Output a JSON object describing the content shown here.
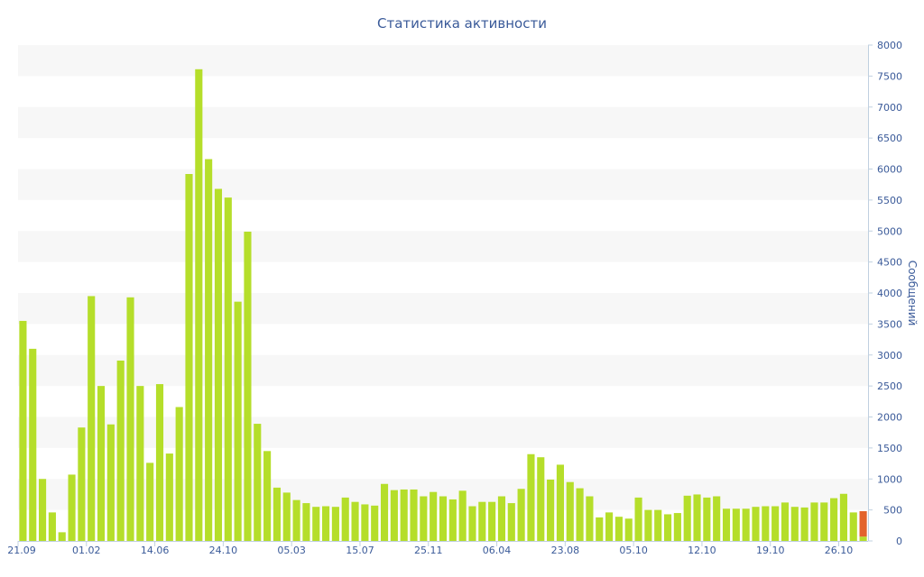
{
  "chart_data": {
    "type": "bar",
    "title": "Статистика активности",
    "ylabel": "Сообщений",
    "y_axis_side": "right",
    "ylim": [
      0,
      8000
    ],
    "yticks": [
      0,
      500,
      1000,
      1500,
      2000,
      2500,
      3000,
      3500,
      4000,
      4500,
      5000,
      5500,
      6000,
      6500,
      7000,
      7500,
      8000
    ],
    "grid": "alternating horizontal bands",
    "x_tick_labels": [
      {
        "label": "21.09",
        "bar": 0
      },
      {
        "label": "01.02",
        "bar": 7
      },
      {
        "label": "14.06",
        "bar": 14
      },
      {
        "label": "24.10",
        "bar": 21
      },
      {
        "label": "05.03",
        "bar": 28
      },
      {
        "label": "15.07",
        "bar": 35
      },
      {
        "label": "25.11",
        "bar": 42
      },
      {
        "label": "06.04",
        "bar": 49
      },
      {
        "label": "23.08",
        "bar": 56
      },
      {
        "label": "05.10",
        "bar": 63
      },
      {
        "label": "12.10",
        "bar": 70
      },
      {
        "label": "19.10",
        "bar": 77
      },
      {
        "label": "26.10",
        "bar": 84
      }
    ],
    "series": [
      {
        "color": "#b5de2a",
        "values": [
          3550,
          3100,
          1000,
          460,
          140,
          1070,
          1830,
          3950,
          2500,
          1880,
          2910,
          3930,
          2500,
          1260,
          2530,
          1410,
          2160,
          5920,
          7610,
          6160,
          5680,
          5540,
          3860,
          4990,
          1890,
          1450,
          860,
          780,
          660,
          610,
          550,
          560,
          550,
          700,
          630,
          590,
          570,
          920,
          820,
          830,
          830,
          720,
          790,
          720,
          670,
          810,
          560,
          630,
          630,
          720,
          610,
          840,
          1400,
          1350,
          990,
          1230,
          950,
          850,
          720,
          380,
          460,
          390,
          360,
          700,
          500,
          500,
          430,
          450,
          730,
          750,
          700,
          720,
          520,
          520,
          520,
          550,
          560,
          560,
          620,
          550,
          540,
          620,
          620,
          690,
          760,
          460,
          70
        ]
      },
      {
        "color": "#e3632b",
        "values": [
          0,
          0,
          0,
          0,
          0,
          0,
          0,
          0,
          0,
          0,
          0,
          0,
          0,
          0,
          0,
          0,
          0,
          0,
          0,
          0,
          0,
          0,
          0,
          0,
          0,
          0,
          0,
          0,
          0,
          0,
          0,
          0,
          0,
          0,
          0,
          0,
          0,
          0,
          0,
          0,
          0,
          0,
          0,
          0,
          0,
          0,
          0,
          0,
          0,
          0,
          0,
          0,
          0,
          0,
          0,
          0,
          0,
          0,
          0,
          0,
          0,
          0,
          0,
          0,
          0,
          0,
          0,
          0,
          0,
          0,
          0,
          0,
          0,
          0,
          0,
          0,
          0,
          0,
          0,
          0,
          0,
          0,
          0,
          0,
          0,
          0,
          410
        ]
      }
    ]
  }
}
